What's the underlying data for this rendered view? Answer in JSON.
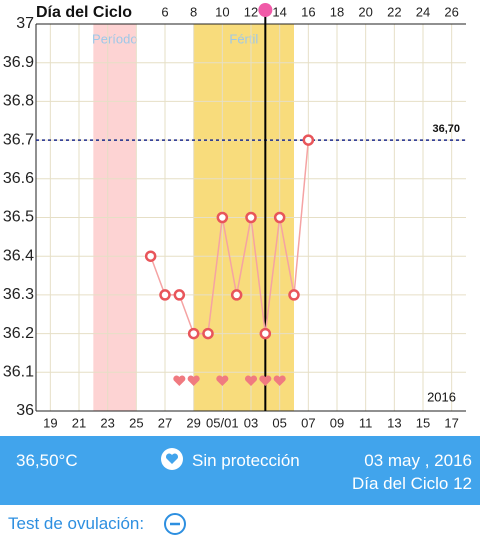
{
  "chart_data": {
    "type": "line",
    "title": "Día del Ciclo",
    "x": [
      5,
      6,
      7,
      8,
      9,
      10,
      11,
      12,
      13,
      14,
      15,
      16
    ],
    "values": [
      36.4,
      36.3,
      36.3,
      36.2,
      36.2,
      36.5,
      36.3,
      36.5,
      36.2,
      36.5,
      36.3,
      36.7
    ],
    "color": "#f5a3a3",
    "marker_color": "#e8555a",
    "xlim": [
      -3,
      27
    ],
    "xticks": [
      {
        "value": -2,
        "label": "19"
      },
      {
        "value": 0,
        "label": "21"
      },
      {
        "value": 2,
        "label": "23"
      },
      {
        "value": 4,
        "label": "25"
      },
      {
        "value": 6,
        "label": "27"
      },
      {
        "value": 8,
        "label": "29"
      },
      {
        "value": 10,
        "label": "05/01"
      },
      {
        "value": 12,
        "label": "03"
      },
      {
        "value": 14,
        "label": "05"
      },
      {
        "value": 16,
        "label": "07"
      },
      {
        "value": 18,
        "label": "09"
      },
      {
        "value": 20,
        "label": "11"
      },
      {
        "value": 22,
        "label": "13"
      },
      {
        "value": 24,
        "label": "15"
      },
      {
        "value": 26,
        "label": "17"
      }
    ],
    "x2ticks": [
      6,
      8,
      10,
      12,
      14,
      16,
      18,
      20,
      22,
      24,
      26
    ],
    "ylim": [
      36,
      37
    ],
    "yticks": [
      36,
      36.1,
      36.2,
      36.3,
      36.4,
      36.5,
      36.6,
      36.7,
      36.8,
      36.9,
      37
    ],
    "grid": true,
    "bands": [
      {
        "label": "Período",
        "range": [
          1,
          4
        ],
        "color": "#fdd3d3"
      },
      {
        "label": "Fértil",
        "range": [
          8,
          15
        ],
        "color": "#f8dc7c"
      }
    ],
    "reference_line": {
      "value": 36.7,
      "label": "36,70",
      "color": "#1c2a8c"
    },
    "cursor_x": 13,
    "heart_days": [
      7,
      8,
      10,
      12,
      13,
      14
    ],
    "heart_color": "#f07a80",
    "year_label": "2016"
  },
  "status": {
    "temperature": "36,50°C",
    "protection": "Sin protección",
    "date": "03 may , 2016",
    "cycle_day": "Día del Ciclo 12"
  },
  "ovulation_test": {
    "label": "Test de ovulación:"
  }
}
